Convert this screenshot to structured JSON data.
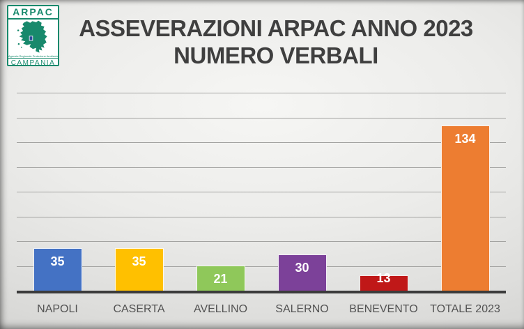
{
  "logo": {
    "name": "ARPAC",
    "agency": "Agenzia Regionale Protezione Ambientale",
    "region": "CAMPANIA",
    "green": "#18896c",
    "crest_blue": "#2b4c9b"
  },
  "title": {
    "line1": "ASSEVERAZIONI ARPAC ANNO 2023",
    "line2": "NUMERO VERBALI"
  },
  "chart_data": {
    "type": "bar",
    "title": "ASSEVERAZIONI ARPAC ANNO 2023 NUMERO VERBALI",
    "categories": [
      "NAPOLI",
      "CASERTA",
      "AVELLINO",
      "SALERNO",
      "BENEVENTO",
      "TOTALE 2023"
    ],
    "values": [
      35,
      35,
      21,
      30,
      13,
      134
    ],
    "bar_colors": [
      "#4472c4",
      "#ffc000",
      "#8fc85a",
      "#7c4199",
      "#c01818",
      "#ed7d31"
    ],
    "value_label_color": "#ffffff",
    "value_label_position": "inside-top",
    "xlabel": "",
    "ylabel": "",
    "ylim": [
      0,
      160
    ],
    "gridline_step": 20,
    "grid": true,
    "y_tick_labels_visible": false,
    "legend": false
  }
}
